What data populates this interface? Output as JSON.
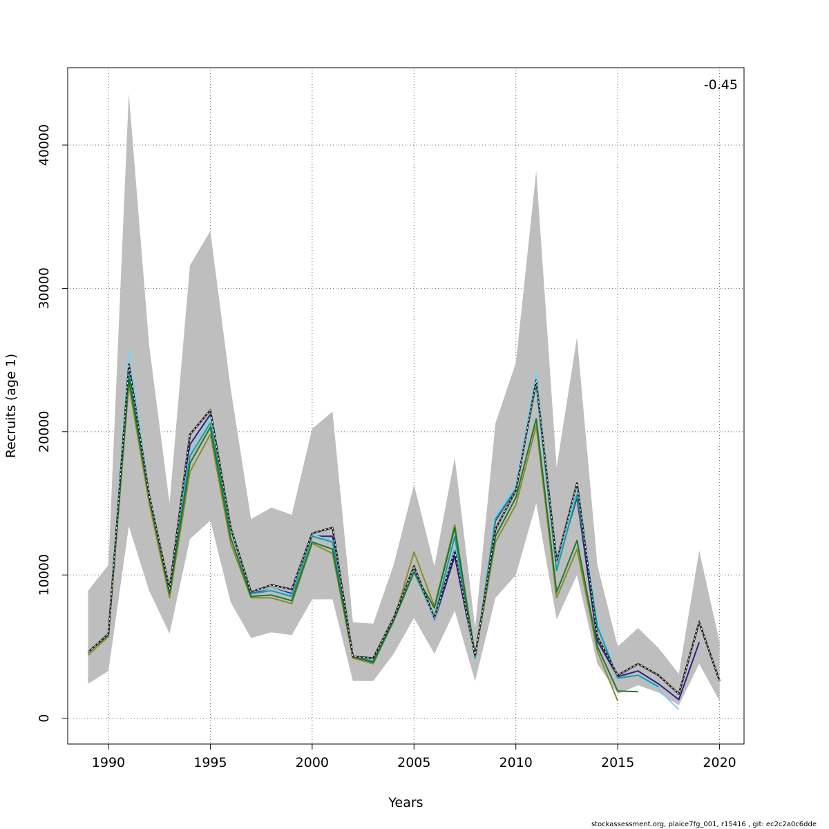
{
  "chart_data": {
    "type": "line",
    "title": "",
    "xlabel": "Years",
    "ylabel": "Recruits (age 1)",
    "xlim": [
      1988,
      2021.2
    ],
    "ylim": [
      -1800,
      45400
    ],
    "x_ticks": [
      1990,
      1995,
      2000,
      2005,
      2010,
      2015,
      2020
    ],
    "y_ticks": [
      0,
      10000,
      20000,
      30000,
      40000
    ],
    "grid": true,
    "annotation": "-0.45",
    "band": {
      "years": [
        1989,
        1990,
        1991,
        1992,
        1993,
        1994,
        1995,
        1996,
        1997,
        1998,
        1999,
        2000,
        2001,
        2002,
        2003,
        2004,
        2005,
        2006,
        2007,
        2008,
        2009,
        2010,
        2011,
        2012,
        2013,
        2014,
        2015,
        2016,
        2017,
        2018,
        2019,
        2020
      ],
      "upper": [
        8900,
        10700,
        43600,
        26000,
        15000,
        31600,
        34000,
        23000,
        13900,
        14700,
        14200,
        20200,
        21400,
        6700,
        6600,
        10700,
        16300,
        10600,
        18200,
        6300,
        20600,
        24800,
        38200,
        17500,
        26600,
        10700,
        5000,
        6300,
        4900,
        3100,
        11700,
        5300
      ],
      "lower": [
        2400,
        3300,
        13400,
        8900,
        5900,
        12500,
        13800,
        8100,
        5600,
        6000,
        5800,
        8300,
        8300,
        2600,
        2600,
        4500,
        7000,
        4500,
        7500,
        2600,
        8400,
        10000,
        15000,
        6900,
        10000,
        3800,
        1700,
        2300,
        1800,
        900,
        3800,
        1200
      ],
      "color": "#bebebe"
    },
    "series": [
      {
        "color": "#1f1f1f",
        "dashed_white": true,
        "x": [
          1989,
          1990,
          1991,
          1992,
          1993,
          1994,
          1995,
          1996,
          1997,
          1998,
          1999,
          2000,
          2001,
          2002,
          2003,
          2004,
          2005,
          2006,
          2007,
          2008,
          2009,
          2010,
          2011,
          2012,
          2013,
          2014,
          2015,
          2016,
          2017,
          2018,
          2019,
          2020
        ],
        "values": [
          4600,
          5900,
          24700,
          15600,
          9000,
          19800,
          21500,
          13300,
          8800,
          9300,
          9000,
          12900,
          13300,
          4300,
          4200,
          7000,
          10600,
          7000,
          11700,
          4300,
          13200,
          15900,
          23600,
          10900,
          16400,
          5700,
          3000,
          3800,
          3000,
          1700,
          6700,
          2600
        ]
      },
      {
        "color": "#2b1f8f",
        "x": [
          1989,
          1990,
          1991,
          1992,
          1993,
          1994,
          1995,
          1996,
          1997,
          1998,
          1999,
          2000,
          2001,
          2002,
          2003,
          2004,
          2005,
          2006,
          2007,
          2008,
          2009,
          2010,
          2011,
          2012,
          2013,
          2014,
          2015,
          2016,
          2017,
          2018,
          2019
        ],
        "values": [
          4600,
          5900,
          24400,
          15500,
          8900,
          19100,
          21200,
          13200,
          8700,
          9100,
          8700,
          12700,
          12700,
          4200,
          4000,
          6900,
          10400,
          6800,
          11300,
          4200,
          13800,
          16000,
          23400,
          10600,
          15400,
          5400,
          2900,
          3300,
          2400,
          1300,
          5300
        ]
      },
      {
        "color": "#7fcfef",
        "x": [
          1989,
          1990,
          1991,
          1992,
          1993,
          1994,
          1995,
          1996,
          1997,
          1998,
          1999,
          2000,
          2001,
          2002,
          2003,
          2004,
          2005,
          2006,
          2007,
          2008,
          2009,
          2010,
          2011,
          2012,
          2013,
          2014,
          2015,
          2016,
          2017,
          2018
        ],
        "values": [
          4600,
          5900,
          25700,
          15800,
          9000,
          18600,
          21000,
          13300,
          8800,
          9100,
          8600,
          12800,
          12400,
          4300,
          3900,
          6900,
          10300,
          6800,
          12000,
          4000,
          14100,
          16300,
          24200,
          10600,
          16000,
          6700,
          2800,
          3000,
          2000,
          600
        ]
      },
      {
        "color": "#1a9a9a",
        "x": [
          1989,
          1990,
          1991,
          1992,
          1993,
          1994,
          1995,
          1996,
          1997,
          1998,
          1999,
          2000,
          2001,
          2002,
          2003,
          2004,
          2005,
          2006,
          2007,
          2008,
          2009,
          2010,
          2011,
          2012,
          2013,
          2014,
          2015,
          2016,
          2017
        ],
        "values": [
          4600,
          5900,
          24100,
          15500,
          8900,
          18300,
          20600,
          13200,
          8700,
          8900,
          8500,
          12700,
          12300,
          4300,
          4000,
          6800,
          10200,
          7100,
          12700,
          4200,
          13900,
          16000,
          23300,
          10300,
          15600,
          6400,
          2800,
          3000,
          2200
        ]
      },
      {
        "color": "#8b8b26",
        "x": [
          1989,
          1990,
          1991,
          1992,
          1993,
          1994,
          1995,
          1996,
          1997,
          1998,
          1999,
          2000,
          2001,
          2002,
          2003,
          2004,
          2005,
          2006,
          2007,
          2008,
          2009,
          2010,
          2011,
          2012,
          2013,
          2014,
          2015
        ],
        "values": [
          4400,
          5700,
          23300,
          15000,
          8400,
          17200,
          19800,
          12200,
          8400,
          8400,
          8000,
          12200,
          11500,
          4200,
          3800,
          6800,
          11600,
          7800,
          13500,
          4300,
          12300,
          14900,
          20400,
          8400,
          11800,
          4700,
          1200
        ]
      },
      {
        "color": "#187830",
        "x": [
          1989,
          1990,
          1991,
          1992,
          1993,
          1994,
          1995,
          1996,
          1997,
          1998,
          1999,
          2000,
          2001,
          2002,
          2003,
          2004,
          2005,
          2006,
          2007,
          2008,
          2009,
          2010,
          2011,
          2012,
          2013,
          2014,
          2015,
          2016
        ],
        "values": [
          4600,
          5800,
          23700,
          15400,
          8700,
          17800,
          20300,
          12600,
          8500,
          8600,
          8200,
          12300,
          11800,
          4300,
          3900,
          6800,
          10200,
          7700,
          13300,
          4400,
          12700,
          15400,
          20900,
          8800,
          12400,
          5000,
          1900,
          1850
        ]
      }
    ]
  },
  "footer_text": "stockassessment.org, plaice7fg_001, r15416 , git: ec2c2a0c6dde"
}
